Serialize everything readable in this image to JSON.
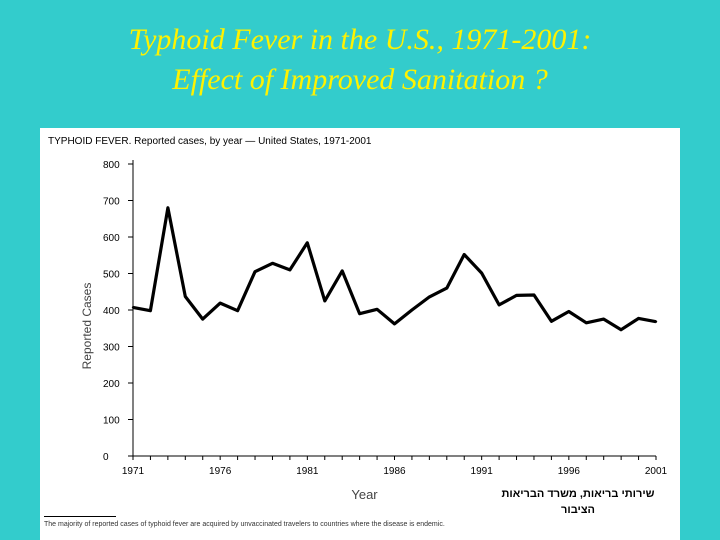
{
  "slide": {
    "title_line1": "Typhoid Fever in the U.S., 1971-2001:",
    "title_line2": "Effect of Improved Sanitation ?"
  },
  "chart_header": "TYPHOID FEVER. Reported cases, by year — United States, 1971-2001",
  "source": {
    "line1": "שירותי בריאות, משרד הבריאות",
    "line2": "הציבור"
  },
  "footnote": "The majority of reported cases of typhoid fever are acquired by unvaccinated travelers to countries where the disease is endemic.",
  "colors": {
    "background": "#33cccc",
    "title": "#fff200",
    "panel": "#ffffff",
    "line": "#000000"
  },
  "chart_data": {
    "type": "line",
    "title": "TYPHOID FEVER. Reported cases, by year — United States, 1971-2001",
    "xlabel": "Year",
    "ylabel": "Reported Cases",
    "xlim": [
      1971,
      2001
    ],
    "ylim": [
      0,
      800
    ],
    "xticks": [
      1971,
      1976,
      1981,
      1986,
      1991,
      1996,
      2001
    ],
    "yticks": [
      0,
      100,
      200,
      300,
      400,
      500,
      600,
      700,
      800
    ],
    "x": [
      1971,
      1972,
      1973,
      1974,
      1975,
      1976,
      1977,
      1978,
      1979,
      1980,
      1981,
      1982,
      1983,
      1984,
      1985,
      1986,
      1987,
      1988,
      1989,
      1990,
      1991,
      1992,
      1993,
      1994,
      1995,
      1996,
      1997,
      1998,
      1999,
      2000,
      2001
    ],
    "series": [
      {
        "name": "Reported cases",
        "values": [
          407,
          398,
          680,
          437,
          375,
          419,
          398,
          505,
          528,
          510,
          584,
          425,
          507,
          390,
          402,
          362,
          400,
          436,
          460,
          552,
          501,
          414,
          440,
          441,
          369,
          396,
          365,
          375,
          346,
          377,
          368
        ]
      }
    ]
  }
}
